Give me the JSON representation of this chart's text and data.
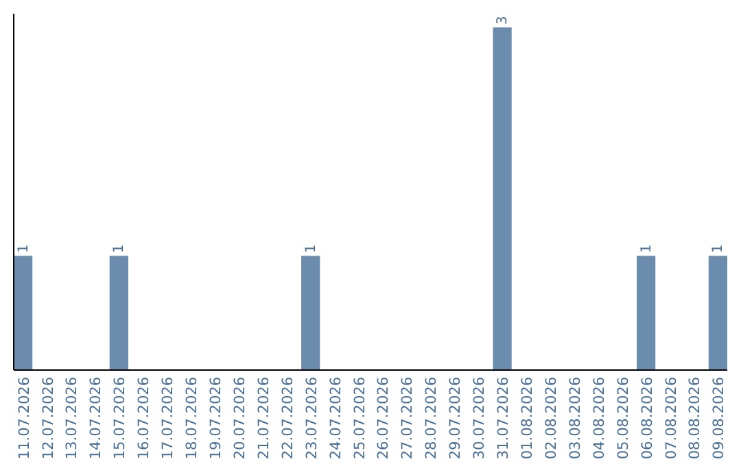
{
  "chart_data": {
    "type": "bar",
    "categories": [
      "11.07.2026",
      "12.07.2026",
      "13.07.2026",
      "14.07.2026",
      "15.07.2026",
      "16.07.2026",
      "17.07.2026",
      "18.07.2026",
      "19.07.2026",
      "20.07.2026",
      "21.07.2026",
      "22.07.2026",
      "23.07.2026",
      "24.07.2026",
      "25.07.2026",
      "26.07.2026",
      "27.07.2026",
      "28.07.2026",
      "29.07.2026",
      "30.07.2026",
      "31.07.2026",
      "01.08.2026",
      "02.08.2026",
      "03.08.2026",
      "04.08.2026",
      "05.08.2026",
      "06.08.2026",
      "07.08.2026",
      "08.08.2026",
      "09.08.2026"
    ],
    "values": [
      1,
      0,
      0,
      0,
      1,
      0,
      0,
      0,
      0,
      0,
      0,
      0,
      1,
      0,
      0,
      0,
      0,
      0,
      0,
      0,
      3,
      0,
      0,
      0,
      0,
      0,
      1,
      0,
      0,
      1
    ],
    "value_labels": [
      "1",
      null,
      null,
      null,
      "1",
      null,
      null,
      null,
      null,
      null,
      null,
      null,
      "1",
      null,
      null,
      null,
      null,
      null,
      null,
      null,
      "3",
      null,
      null,
      null,
      null,
      null,
      "1",
      null,
      null,
      "1"
    ],
    "color": "#6b8cad"
  }
}
